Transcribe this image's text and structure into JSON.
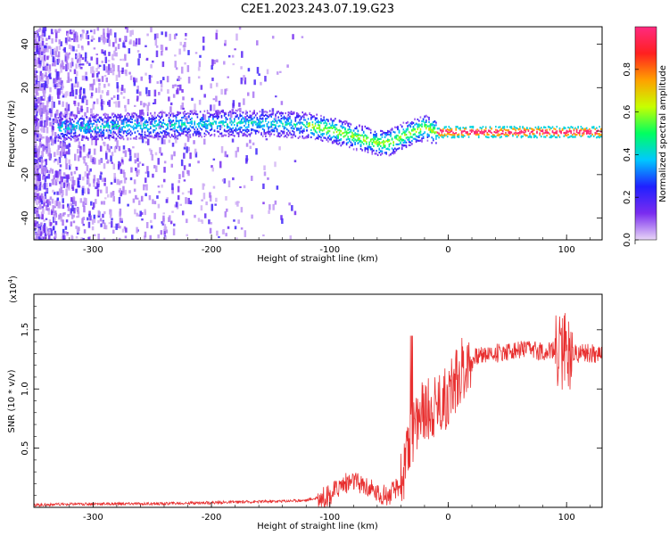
{
  "title": "C2E1.2023.243.07.19.G23",
  "chart_data": [
    {
      "type": "heatmap",
      "xlabel": "Height of straight line (km)",
      "ylabel": "Frequency (Hz)",
      "xlim": [
        -350,
        130
      ],
      "ylim": [
        -50,
        48
      ],
      "xticks": [
        -300,
        -200,
        -100,
        0,
        100
      ],
      "xtick_labels": [
        "-300",
        "-200",
        "-100",
        "0",
        "100"
      ],
      "yticks": [
        -40,
        -20,
        0,
        20,
        40
      ],
      "ytick_labels": [
        "-40",
        "-20",
        "0",
        "20",
        "40"
      ],
      "colorbar": {
        "label": "Normalized spectral amplitude",
        "range": [
          0,
          1
        ],
        "ticks": [
          0.0,
          0.2,
          0.4,
          0.6,
          0.8
        ],
        "tick_labels": [
          "0.0",
          "0.2",
          "0.4",
          "0.6",
          "0.8"
        ],
        "colors": [
          "#e8d6f6",
          "#7a2cf0",
          "#2020ff",
          "#00c8ff",
          "#00ff60",
          "#c8ff00",
          "#ffa000",
          "#ff2020",
          "#ff2a80"
        ]
      },
      "ridge": {
        "x": [
          -320,
          -250,
          -200,
          -150,
          -120,
          -100,
          -80,
          -60,
          -50,
          -40,
          -30,
          -20,
          -10,
          0,
          50,
          100,
          130
        ],
        "y": [
          2,
          3,
          4,
          4,
          3,
          1,
          -2,
          -5,
          -5,
          -2,
          0,
          2,
          0,
          0,
          0,
          0,
          0
        ]
      },
      "grid": false
    },
    {
      "type": "line",
      "xlabel": "Height of straight line (km)",
      "ylabel": "SNR (10 * v/v)",
      "yunit": "(x10",
      "yunit_exp": "4",
      "yunit_close": ")",
      "xlim": [
        -350,
        130
      ],
      "ylim": [
        0,
        1.8
      ],
      "xticks": [
        -300,
        -200,
        -100,
        0,
        100
      ],
      "xtick_labels": [
        "-300",
        "-200",
        "-100",
        "0",
        "100"
      ],
      "yticks": [
        0.5,
        1.0,
        1.5
      ],
      "ytick_labels": [
        "0.5",
        "1.0",
        "1.5"
      ],
      "series": [
        {
          "color": "#e83030",
          "x": [
            -350,
            -300,
            -250,
            -200,
            -150,
            -120,
            -100,
            -90,
            -80,
            -70,
            -60,
            -50,
            -40,
            -35,
            -30,
            -25,
            -20,
            -15,
            -10,
            -5,
            0,
            5,
            10,
            15,
            20,
            30,
            40,
            50,
            60,
            70,
            80,
            90,
            100,
            110,
            120,
            130
          ],
          "y": [
            0.02,
            0.03,
            0.03,
            0.04,
            0.05,
            0.06,
            0.1,
            0.2,
            0.22,
            0.18,
            0.12,
            0.1,
            0.2,
            0.4,
            0.65,
            0.75,
            0.8,
            0.85,
            0.88,
            0.9,
            0.95,
            1.05,
            1.15,
            1.2,
            1.25,
            1.3,
            1.3,
            1.32,
            1.33,
            1.33,
            1.32,
            1.32,
            1.33,
            1.3,
            1.3,
            1.3
          ]
        }
      ],
      "grid": false
    }
  ]
}
